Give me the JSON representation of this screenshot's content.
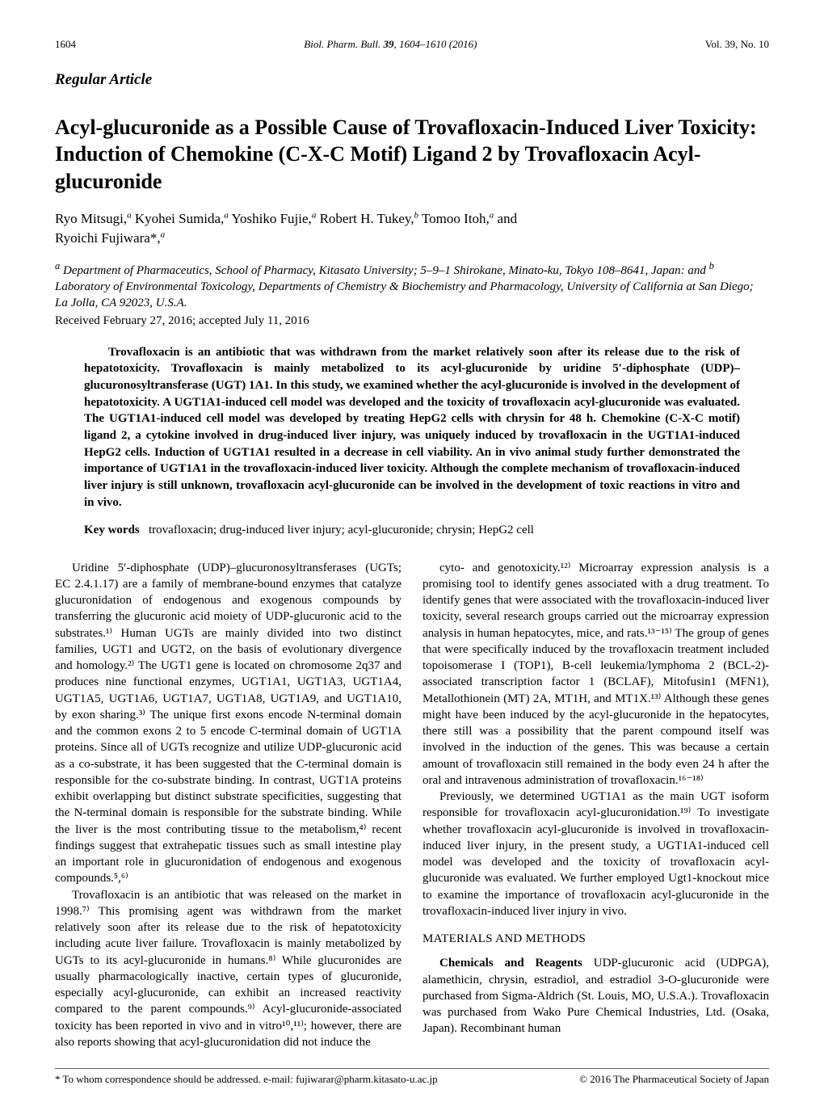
{
  "header": {
    "page": "1604",
    "journal": "Biol. Pharm. Bull.",
    "volume": "39",
    "pages": "1604–1610 (2016)",
    "issue": "Vol. 39, No. 10"
  },
  "articleType": "Regular Article",
  "title": "Acyl-glucuronide as a Possible Cause of Trovafloxacin-Induced Liver Toxicity: Induction of Chemokine (C-X-C Motif) Ligand 2 by Trovafloxacin Acyl-glucuronide",
  "authors": {
    "line1_a": "Ryo Mitsugi,",
    "line1_b": " Kyohei Sumida,",
    "line1_c": " Yoshiko Fujie,",
    "line1_d": " Robert H. Tukey,",
    "line1_e": " Tomoo Itoh,",
    "line1_f": " and",
    "line2": "Ryoichi Fujiwara*,",
    "sup_a": "a",
    "sup_b": "b"
  },
  "affiliations": {
    "a": "Department of Pharmaceutics, School of Pharmacy, Kitasato University; 5–9–1 Shirokane, Minato-ku, Tokyo 108–8641, Japan: and ",
    "b": "Laboratory of Environmental Toxicology, Departments of Chemistry & Biochemistry and Pharmacology, University of California at San Diego; La Jolla, CA 92023, U.S.A."
  },
  "received": "Received February 27, 2016; accepted July 11, 2016",
  "abstract": "Trovafloxacin is an antibiotic that was withdrawn from the market relatively soon after its release due to the risk of hepatotoxicity. Trovafloxacin is mainly metabolized to its acyl-glucuronide by uridine 5′-diphosphate (UDP)–glucuronosyltransferase (UGT) 1A1. In this study, we examined whether the acyl-glucuronide is involved in the development of hepatotoxicity. A UGT1A1-induced cell model was developed and the toxicity of trovafloxacin acyl-glucuronide was evaluated. The UGT1A1-induced cell model was developed by treating HepG2 cells with chrysin for 48 h. Chemokine (C-X-C motif) ligand 2, a cytokine involved in drug-induced liver injury, was uniquely induced by trovafloxacin in the UGT1A1-induced HepG2 cells. Induction of UGT1A1 resulted in a decrease in cell viability. An in vivo animal study further demonstrated the importance of UGT1A1 in the trovafloxacin-induced liver toxicity. Although the complete mechanism of trovafloxacin-induced liver injury is still unknown, trovafloxacin acyl-glucuronide can be involved in the development of toxic reactions in vitro and in vivo.",
  "keywords": {
    "label": "Key words",
    "text": "trovafloxacin; drug-induced liver injury; acyl-glucuronide; chrysin; HepG2 cell"
  },
  "body": {
    "p1": "Uridine 5′-diphosphate (UDP)–glucuronosyltransferases (UGTs; EC 2.4.1.17) are a family of membrane-bound enzymes that catalyze glucuronidation of endogenous and exogenous compounds by transferring the glucuronic acid moiety of UDP-glucuronic acid to the substrates.¹⁾ Human UGTs are mainly divided into two distinct families, UGT1 and UGT2, on the basis of evolutionary divergence and homology.²⁾ The UGT1 gene is located on chromosome 2q37 and produces nine functional enzymes, UGT1A1, UGT1A3, UGT1A4, UGT1A5, UGT1A6, UGT1A7, UGT1A8, UGT1A9, and UGT1A10, by exon sharing.³⁾ The unique first exons encode N-terminal domain and the common exons 2 to 5 encode C-terminal domain of UGT1A proteins. Since all of UGTs recognize and utilize UDP-glucuronic acid as a co-substrate, it has been suggested that the C-terminal domain is responsible for the co-substrate binding. In contrast, UGT1A proteins exhibit overlapping but distinct substrate specificities, suggesting that the N-terminal domain is responsible for the substrate binding. While the liver is the most contributing tissue to the metabolism,⁴⁾ recent findings suggest that extrahepatic tissues such as small intestine play an important role in glucuronidation of endogenous and exogenous compounds.⁵,⁶⁾",
    "p2": "Trovafloxacin is an antibiotic that was released on the market in 1998.⁷⁾ This promising agent was withdrawn from the market relatively soon after its release due to the risk of hepatotoxicity including acute liver failure. Trovafloxacin is mainly metabolized by UGTs to its acyl-glucuronide in humans.⁸⁾ While glucuronides are usually pharmacologically inactive, certain types of glucuronide, especially acyl-glucuronide, can exhibit an increased reactivity compared to the parent compounds.⁹⁾ Acyl-glucuronide-associated toxicity has been reported in vivo and in vitro¹⁰,¹¹⁾; however, there are also reports showing that acyl-glucuronidation did not induce the",
    "p3": "cyto- and genotoxicity.¹²⁾ Microarray expression analysis is a promising tool to identify genes associated with a drug treatment. To identify genes that were associated with the trovafloxacin-induced liver toxicity, several research groups carried out the microarray expression analysis in human hepatocytes, mice, and rats.¹³⁻¹⁵⁾ The group of genes that were specifically induced by the trovafloxacin treatment included topoisomerase I (TOP1), B-cell leukemia/lymphoma 2 (BCL-2)-associated transcription factor 1 (BCLAF), Mitofusin1 (MFN1), Metallothionein (MT) 2A, MT1H, and MT1X.¹³⁾ Although these genes might have been induced by the acyl-glucuronide in the hepatocytes, there still was a possibility that the parent compound itself was involved in the induction of the genes. This was because a certain amount of trovafloxacin still remained in the body even 24 h after the oral and intravenous administration of trovafloxacin.¹⁶⁻¹⁸⁾",
    "p4": "Previously, we determined UGT1A1 as the main UGT isoform responsible for trovafloxacin acyl-glucuronidation.¹⁹⁾ To investigate whether trovafloxacin acyl-glucuronide is involved in trovafloxacin-induced liver injury, in the present study, a UGT1A1-induced cell model was developed and the toxicity of trovafloxacin acyl-glucuronide was evaluated. We further employed Ugt1-knockout mice to examine the importance of trovafloxacin acyl-glucuronide in the trovafloxacin-induced liver injury in vivo.",
    "sectionHead": "MATERIALS AND METHODS",
    "p5_run": "Chemicals and Reagents",
    "p5": "  UDP-glucuronic acid (UDPGA), alamethicin, chrysin, estradiol, and estradiol 3-O-glucuronide were purchased from Sigma-Aldrich (St. Louis, MO, U.S.A.). Trovafloxacin was purchased from Wako Pure Chemical Industries, Ltd. (Osaka, Japan). Recombinant human"
  },
  "footer": {
    "correspondence": "* To whom correspondence should be addressed.   e-mail: fujiwarar@pharm.kitasato-u.ac.jp",
    "copyright": "© 2016 The Pharmaceutical Society of Japan"
  }
}
